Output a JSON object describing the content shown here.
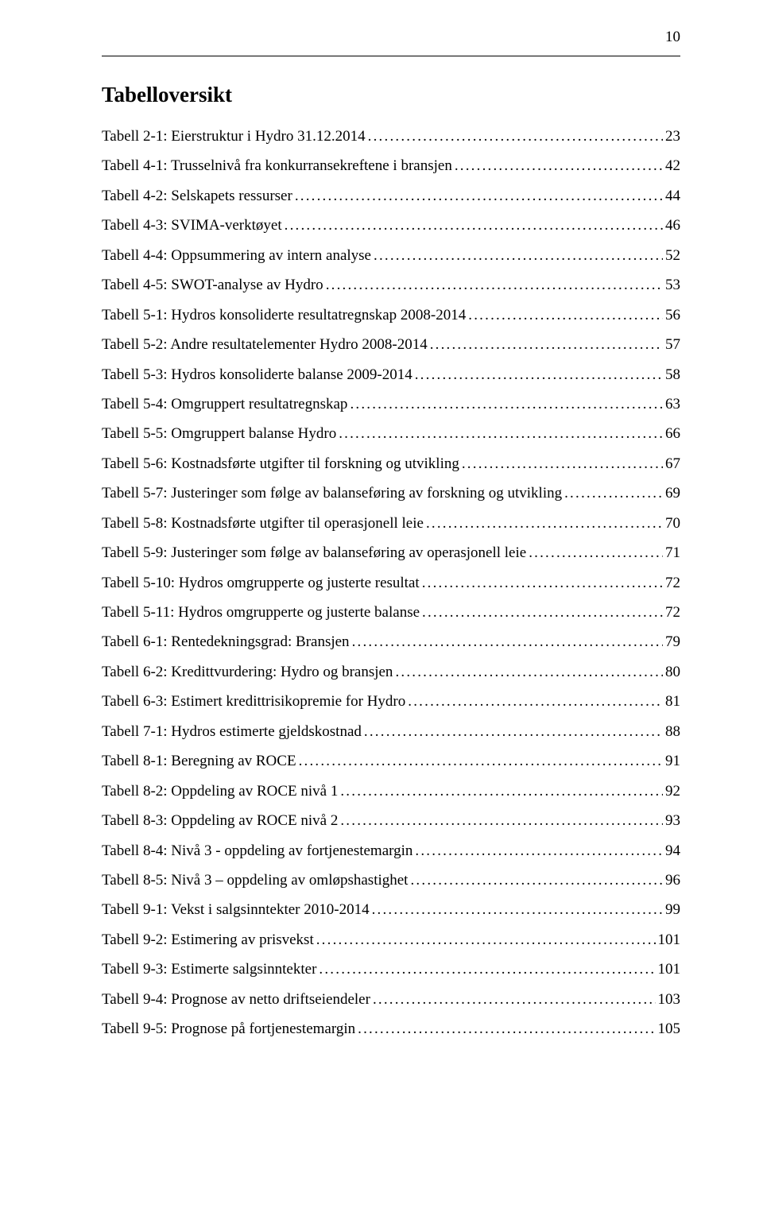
{
  "page_number": "10",
  "title": "Tabelloversikt",
  "entries": [
    {
      "label": "Tabell 2-1: Eierstruktur i Hydro 31.12.2014",
      "page": "23"
    },
    {
      "label": "Tabell 4-1: Trusselnivå fra konkurransekreftene i bransjen",
      "page": "42"
    },
    {
      "label": "Tabell 4-2: Selskapets ressurser",
      "page": "44"
    },
    {
      "label": "Tabell 4-3: SVIMA-verktøyet",
      "page": "46"
    },
    {
      "label": "Tabell 4-4: Oppsummering av intern analyse",
      "page": "52"
    },
    {
      "label": "Tabell 4-5: SWOT-analyse av Hydro",
      "page": "53"
    },
    {
      "label": "Tabell 5-1: Hydros konsoliderte resultatregnskap 2008-2014",
      "page": "56"
    },
    {
      "label": "Tabell 5-2: Andre resultatelementer Hydro 2008-2014",
      "page": "57"
    },
    {
      "label": "Tabell 5-3: Hydros konsoliderte balanse 2009-2014",
      "page": "58"
    },
    {
      "label": "Tabell 5-4: Omgruppert resultatregnskap",
      "page": "63"
    },
    {
      "label": "Tabell 5-5: Omgruppert balanse Hydro",
      "page": "66"
    },
    {
      "label": "Tabell 5-6: Kostnadsførte utgifter til forskning og utvikling",
      "page": "67"
    },
    {
      "label": "Tabell 5-7: Justeringer som følge av balanseføring av forskning og utvikling",
      "page": "69"
    },
    {
      "label": "Tabell 5-8: Kostnadsførte utgifter til operasjonell leie",
      "page": "70"
    },
    {
      "label": "Tabell 5-9: Justeringer som følge av balanseføring av operasjonell leie",
      "page": "71"
    },
    {
      "label": "Tabell 5-10: Hydros omgrupperte og justerte resultat",
      "page": "72"
    },
    {
      "label": "Tabell 5-11: Hydros omgrupperte og justerte balanse",
      "page": "72"
    },
    {
      "label": "Tabell 6-1: Rentedekningsgrad: Bransjen",
      "page": "79"
    },
    {
      "label": "Tabell 6-2: Kredittvurdering: Hydro og bransjen",
      "page": "80"
    },
    {
      "label": "Tabell 6-3: Estimert kredittrisikopremie for Hydro",
      "page": "81"
    },
    {
      "label": "Tabell 7-1: Hydros estimerte gjeldskostnad",
      "page": "88"
    },
    {
      "label": "Tabell 8-1: Beregning av ROCE",
      "page": "91"
    },
    {
      "label": "Tabell 8-2: Oppdeling av ROCE nivå 1",
      "page": "92"
    },
    {
      "label": "Tabell 8-3: Oppdeling av ROCE nivå 2",
      "page": "93"
    },
    {
      "label": "Tabell 8-4: Nivå 3 - oppdeling av fortjenestemargin",
      "page": "94"
    },
    {
      "label": "Tabell 8-5: Nivå 3 – oppdeling av omløpshastighet",
      "page": "96"
    },
    {
      "label": "Tabell 9-1: Vekst i salgsinntekter 2010-2014",
      "page": "99"
    },
    {
      "label": "Tabell 9-2: Estimering av prisvekst",
      "page": "101"
    },
    {
      "label": "Tabell 9-3: Estimerte salgsinntekter",
      "page": "101"
    },
    {
      "label": "Tabell 9-4: Prognose av netto driftseiendeler",
      "page": "103"
    },
    {
      "label": "Tabell 9-5: Prognose på fortjenestemargin",
      "page": "105"
    }
  ]
}
